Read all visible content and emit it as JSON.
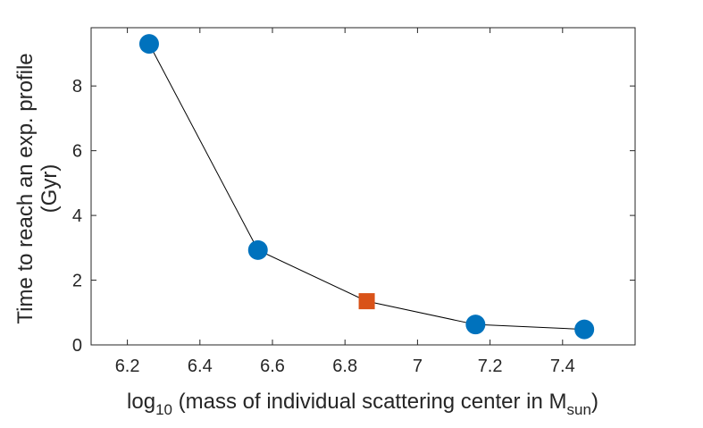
{
  "chart_data": {
    "type": "scatter",
    "title": "",
    "xlabel": {
      "prefix": "log",
      "subscript": "10",
      "main": " (mass of individual scattering center in M",
      "subscript2": "sun",
      "suffix": ")"
    },
    "ylabel": [
      "Time to reach an exp. profile",
      "(Gyr)"
    ],
    "xlim": [
      6.1,
      7.6
    ],
    "ylim": [
      0,
      9.8
    ],
    "xticks": [
      6.2,
      6.4,
      6.6,
      6.8,
      7,
      7.2,
      7.4
    ],
    "xtick_labels": [
      "6.2",
      "6.4",
      "6.6",
      "6.8",
      "7",
      "7.2",
      "7.4"
    ],
    "yticks": [
      0,
      2,
      4,
      6,
      8
    ],
    "ytick_labels": [
      "0",
      "2",
      "4",
      "6",
      "8"
    ],
    "grid": false,
    "line": {
      "color": "#000000",
      "x": [
        6.26,
        6.56,
        6.86,
        7.16,
        7.46
      ],
      "y": [
        9.3,
        2.93,
        1.35,
        0.63,
        0.48
      ]
    },
    "series": [
      {
        "name": "circles",
        "marker": "circle",
        "color": "#0072BD",
        "x": [
          6.26,
          6.56,
          7.16,
          7.46
        ],
        "y": [
          9.3,
          2.93,
          0.63,
          0.48
        ]
      },
      {
        "name": "square",
        "marker": "square",
        "color": "#D95319",
        "x": [
          6.86
        ],
        "y": [
          1.35
        ]
      }
    ]
  }
}
